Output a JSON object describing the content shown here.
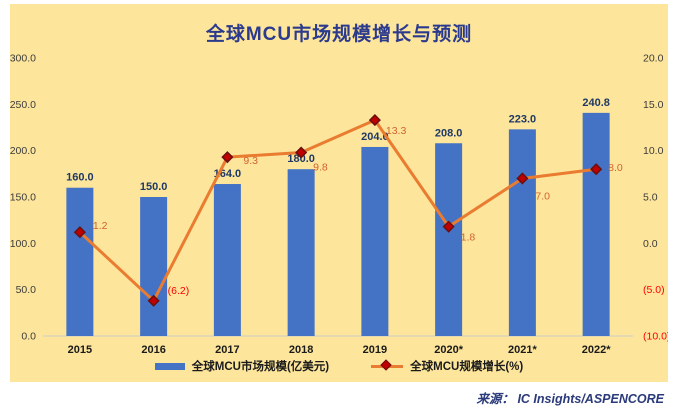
{
  "chart_data": {
    "type": "combo-bar-line",
    "title": "全球MCU市场规模增长与预测",
    "categories": [
      "2015",
      "2016",
      "2017",
      "2018",
      "2019",
      "2020*",
      "2021*",
      "2022*"
    ],
    "series": [
      {
        "name": "全球MCU市场规模(亿美元)",
        "type": "bar",
        "axis": "left",
        "values": [
          160.0,
          150.0,
          164.0,
          180.0,
          204.0,
          208.0,
          223.0,
          240.8
        ],
        "labels": [
          "160.0",
          "150.0",
          "164.0",
          "180.0",
          "204.0",
          "208.0",
          "223.0",
          "240.8"
        ]
      },
      {
        "name": "全球MCU规模增长(%)",
        "type": "line",
        "axis": "right",
        "values": [
          1.2,
          -6.2,
          9.3,
          9.8,
          13.3,
          1.8,
          7.0,
          8.0
        ],
        "labels": [
          "1.2",
          "(6.2)",
          "9.3",
          "9.8",
          "13.3",
          "1.8",
          "7.0",
          "8.0"
        ]
      }
    ],
    "axes": {
      "left": {
        "min": 0,
        "max": 300,
        "ticks": [
          "300.0",
          "250.0",
          "200.0",
          "150.0",
          "100.0",
          "50.0",
          "0.0"
        ]
      },
      "right": {
        "min": -10,
        "max": 20,
        "ticks": [
          "20.0",
          "15.0",
          "10.0",
          "5.0",
          "0.0",
          "(5.0)",
          "(10.0)"
        ]
      }
    },
    "legend": [
      "全球MCU市场规模(亿美元)",
      "全球MCU规模增长(%)"
    ],
    "grid": false,
    "legend_position": "bottom"
  },
  "source": "来源：  IC Insights/ASPENCORE",
  "colors": {
    "chart_bg": "#FDE69C",
    "bar": "#4472C4",
    "bar_label": "#1F3864",
    "line": "#E97C30",
    "marker": "#C00000",
    "marker_stroke": "#6B0F0F",
    "line_label_positive": "#D2622F",
    "negative_red": "#FF0000",
    "axis_text": "#3B3B3B",
    "x_label": "#1A1A1A",
    "baseline": "#DCD5B8",
    "title": "#2B3A8C",
    "source_text": "#2B3A7A"
  }
}
